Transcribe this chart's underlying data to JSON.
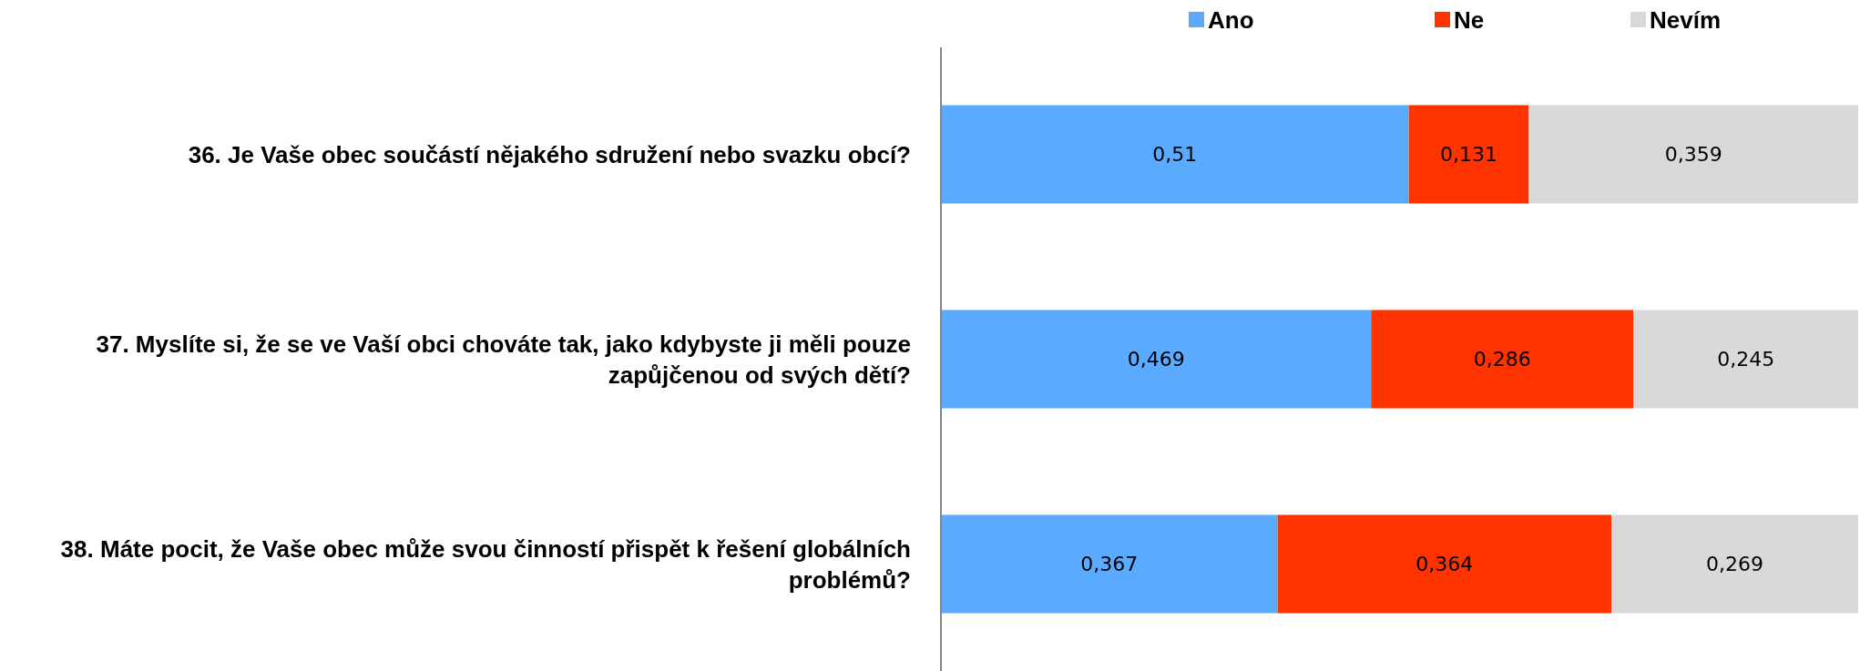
{
  "chart_data": {
    "type": "bar",
    "orientation": "horizontal",
    "stacked": true,
    "legend": "top",
    "categories": [
      "36. Je Vaše obec součástí nějakého sdružení nebo svazku obcí?",
      "37. Myslíte si, že se ve Vaší obci chováte tak, jako kdybyste ji měli pouze zapůjčenou od svých dětí?",
      "38. Máte pocit, že Vaše obec může svou činností přispět k řešení globálních problémů?"
    ],
    "series": [
      {
        "name": "Ano",
        "color": "#5aabff",
        "values": [
          0.51,
          0.469,
          0.367
        ],
        "value_labels": [
          "0,51",
          "0,469",
          "0,367"
        ]
      },
      {
        "name": "Ne",
        "color": "#ff3300",
        "values": [
          0.131,
          0.286,
          0.364
        ],
        "value_labels": [
          "0,131",
          "0,286",
          "0,364"
        ]
      },
      {
        "name": "Nevím",
        "color": "#d9d9d9",
        "values": [
          0.359,
          0.245,
          0.269
        ],
        "value_labels": [
          "0,359",
          "0,245",
          "0,269"
        ]
      }
    ]
  }
}
